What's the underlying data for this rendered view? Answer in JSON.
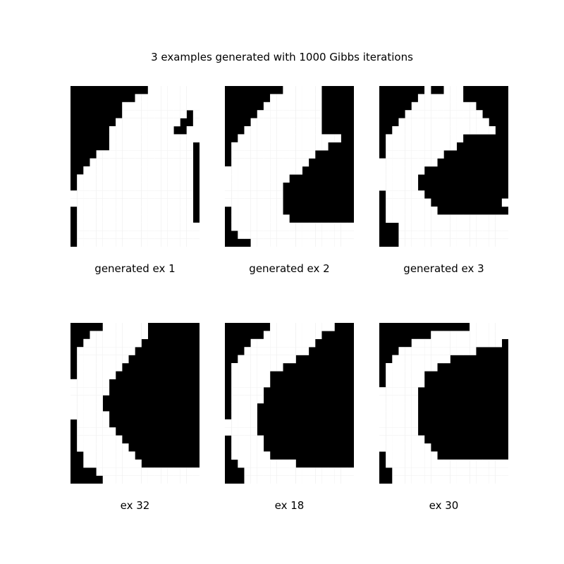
{
  "title": "3 examples generated with 1000 Gibbs iterations",
  "panels": [
    {
      "caption": "generated ex 1",
      "rows": [
        "11111111111100000000",
        "11111111110000000000",
        "11111111000000000000",
        "11111111000000000010",
        "11111110000000000110",
        "11111100000000001100",
        "11111100000000000000",
        "11111100000000000001",
        "11110000000000000001",
        "11100000000000000001",
        "11000000000000000001",
        "10000000000000000001",
        "10000000000000000001",
        "00000000000000000001",
        "00000000000000000001",
        "10000000000000000001",
        "10000000000000000001",
        "10000000000000000000",
        "10000000000000000000",
        "10000000000000000000"
      ]
    },
    {
      "caption": "generated ex 2",
      "rows": [
        "11111111100000011111",
        "11111110000000011111",
        "11111100000000011111",
        "11111000000000011111",
        "11110000000000011111",
        "11100000000000011111",
        "11000000000000000011",
        "10000000000000001111",
        "10000000000000111111",
        "10000000000001111111",
        "00000000000011111111",
        "00000000001111111111",
        "00000000011111111111",
        "00000000011111111111",
        "00000000011111111111",
        "10000000011111111111",
        "10000000001111111111",
        "10000000000000000000",
        "11000000000000000000",
        "11110000000000000000"
      ]
    },
    {
      "caption": "generated ex 3",
      "rows": [
        "11111110110001111111",
        "11111100000001111111",
        "11111000000000011111",
        "11110000000000001111",
        "11100000000000000111",
        "11000000000000000011",
        "10000000000001111111",
        "10000000000011111111",
        "10000000001111111111",
        "00000000011111111111",
        "00000001111111111111",
        "00000011111111111111",
        "00000011111111111111",
        "10000001111111111111",
        "10000000111111111110",
        "10000000011111111111",
        "10000000000000000000",
        "11100000000000000000",
        "11100000000000000000",
        "11100000000000000000"
      ]
    },
    {
      "caption": "ex 32",
      "rows": [
        "11111000000011111111",
        "11100000000011111111",
        "11000000000111111111",
        "10000000001111111111",
        "10000000011111111111",
        "10000000111111111111",
        "10000001111111111111",
        "00000011111111111111",
        "00000011111111111111",
        "00000111111111111111",
        "00000111111111111111",
        "00000011111111111111",
        "10000011111111111111",
        "10000001111111111111",
        "10000000111111111111",
        "10000000011111111111",
        "11000000001111111111",
        "11000000000111111111",
        "11110000000000000000",
        "11111000000000000000"
      ]
    },
    {
      "caption": "ex 18",
      "rows": [
        "11111110000000000111",
        "11111100000000011111",
        "11110000000000111111",
        "11100000000001111111",
        "11000000000111111111",
        "10000000011111111111",
        "10000001111111111111",
        "10000001111111111111",
        "10000011111111111111",
        "10000011111111111111",
        "10000111111111111111",
        "10000111111111111111",
        "00000111111111111111",
        "00000111111111111111",
        "10000011111111111111",
        "10000011111111111111",
        "10000001111111111111",
        "11000000000111111111",
        "11100000000000000000",
        "11100000000000000000"
      ]
    },
    {
      "caption": "ex 30",
      "rows": [
        "11111111111111000000",
        "11111111000000000000",
        "11111000000000000001",
        "11100000000000011111",
        "11000000000111111111",
        "10000000011111111111",
        "10000001111111111111",
        "10000001111111111111",
        "00000011111111111111",
        "00000011111111111111",
        "00000011111111111111",
        "00000011111111111111",
        "00000011111111111111",
        "00000011111111111111",
        "00000001111111111111",
        "00000000111111111111",
        "10000000011111111111",
        "10000000000000000000",
        "11000000000000000000",
        "11000000000000000000"
      ]
    }
  ]
}
